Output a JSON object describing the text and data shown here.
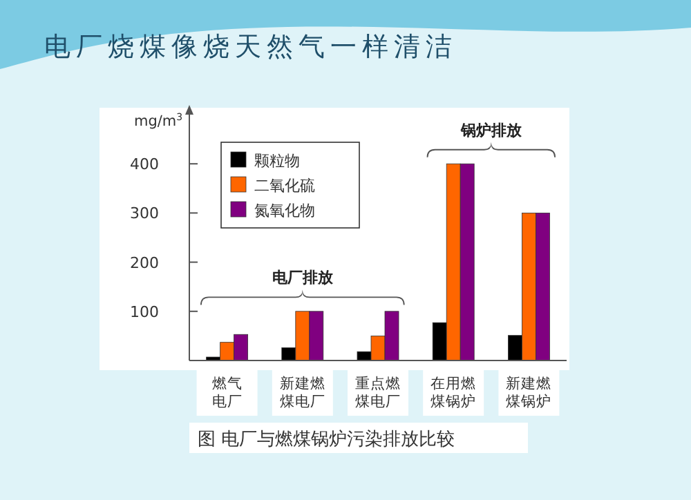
{
  "chart_data": {
    "type": "bar",
    "title": "电厂烧煤像烧天然气一样清洁",
    "ylabel": "mg/m$^{3}$",
    "categories": [
      "燃气电厂",
      "新建燃煤电厂",
      "重点燃煤电厂",
      "在用燃煤锅炉",
      "新建燃煤锅炉"
    ],
    "series": [
      {
        "name": "颗粒物",
        "color": "#000000",
        "values": [
          7,
          26,
          18,
          77,
          51
        ]
      },
      {
        "name": "二氧化硫",
        "color": "#ff6600",
        "values": [
          37,
          100,
          50,
          400,
          300
        ]
      },
      {
        "name": "氮氧化物",
        "color": "#800080",
        "values": [
          53,
          100,
          100,
          400,
          300
        ]
      }
    ],
    "ylim": [
      0,
      500
    ],
    "yticks": [
      100,
      200,
      300,
      400
    ],
    "legend": "top left",
    "annotations": [
      "电厂排放",
      "锅炉排放",
      "图  电厂与燃煤锅炉污染排放比较"
    ]
  }
}
